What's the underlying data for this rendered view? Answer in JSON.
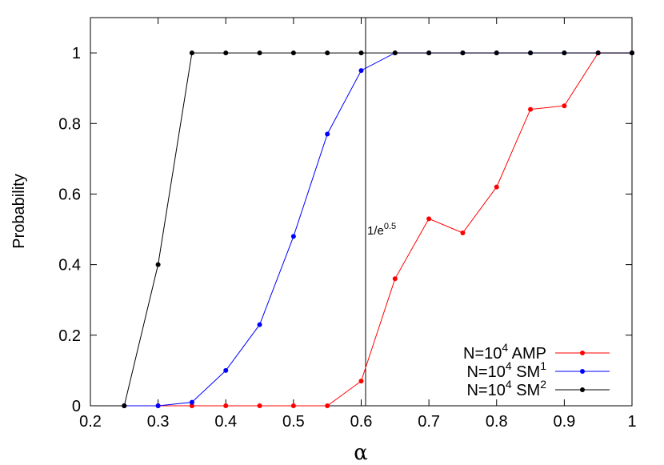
{
  "chart_data": {
    "type": "line",
    "xlabel": "α",
    "ylabel": "Probability",
    "xlim": [
      0.2,
      1.0
    ],
    "ylim": [
      0,
      1.1
    ],
    "xticks": [
      "0.2",
      "0.3",
      "0.4",
      "0.5",
      "0.6",
      "0.7",
      "0.8",
      "0.9",
      "1"
    ],
    "yticks": [
      "0",
      "0.2",
      "0.4",
      "0.6",
      "0.8",
      "1"
    ],
    "x": [
      0.25,
      0.3,
      0.35,
      0.4,
      0.45,
      0.5,
      0.55,
      0.6,
      0.65,
      0.7,
      0.75,
      0.8,
      0.85,
      0.9,
      0.95,
      1.0
    ],
    "series": [
      {
        "name": "N=10^4 AMP",
        "name_base": "N=10",
        "name_sup": "4",
        "name_rest": " AMP",
        "name_sup2": "",
        "color": "#ff0000",
        "values": [
          0,
          0,
          0,
          0,
          0,
          0,
          0,
          0.07,
          0.36,
          0.53,
          0.49,
          0.62,
          0.84,
          0.85,
          1.0,
          1.0
        ]
      },
      {
        "name": "N=10^4 SM^1",
        "name_base": "N=10",
        "name_sup": "4",
        "name_rest": " SM",
        "name_sup2": "1",
        "color": "#0000ff",
        "values": [
          0,
          0,
          0.01,
          0.1,
          0.23,
          0.48,
          0.77,
          0.95,
          1.0,
          1.0,
          1.0,
          1.0,
          1.0,
          1.0,
          1.0,
          1.0
        ]
      },
      {
        "name": "N=10^4 SM^2",
        "name_base": "N=10",
        "name_sup": "4",
        "name_rest": " SM",
        "name_sup2": "2",
        "color": "#000000",
        "values": [
          0,
          0.4,
          1.0,
          1.0,
          1.0,
          1.0,
          1.0,
          1.0,
          1.0,
          1.0,
          1.0,
          1.0,
          1.0,
          1.0,
          1.0,
          1.0
        ]
      }
    ],
    "vline": {
      "x": 0.6065,
      "label_base": "1/e",
      "label_sup": "0.5"
    },
    "legend_position": "bottom-right",
    "grid": false
  }
}
